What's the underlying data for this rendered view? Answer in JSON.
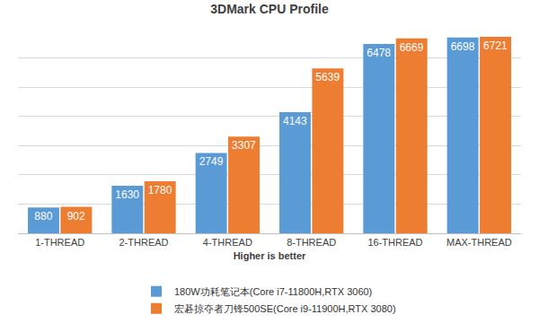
{
  "chart_data": {
    "type": "bar",
    "title": "3DMark CPU Profile",
    "x_label": "Higher is better",
    "categories": [
      "1-THREAD",
      "2-THREAD",
      "4-THREAD",
      "8-THREAD",
      "16-THREAD",
      "MAX-THREAD"
    ],
    "series": [
      {
        "name": "180W功耗笔记本(Core i7-11800H,RTX 3060)",
        "color": "#5b9bd5",
        "values": [
          880,
          1630,
          2749,
          4143,
          6478,
          6698
        ]
      },
      {
        "name": "宏碁掠夺者刀锋500SE(Core i9-11900H,RTX 3080)",
        "color": "#ed7d31",
        "values": [
          902,
          1780,
          3307,
          5639,
          6669,
          6721
        ]
      }
    ],
    "ylim": [
      0,
      7000
    ],
    "yticks": [
      0,
      1000,
      2000,
      3000,
      4000,
      5000,
      6000,
      7000
    ],
    "grid": true,
    "data_labels": true,
    "tick_labels": "x",
    "legend": "bottom"
  }
}
